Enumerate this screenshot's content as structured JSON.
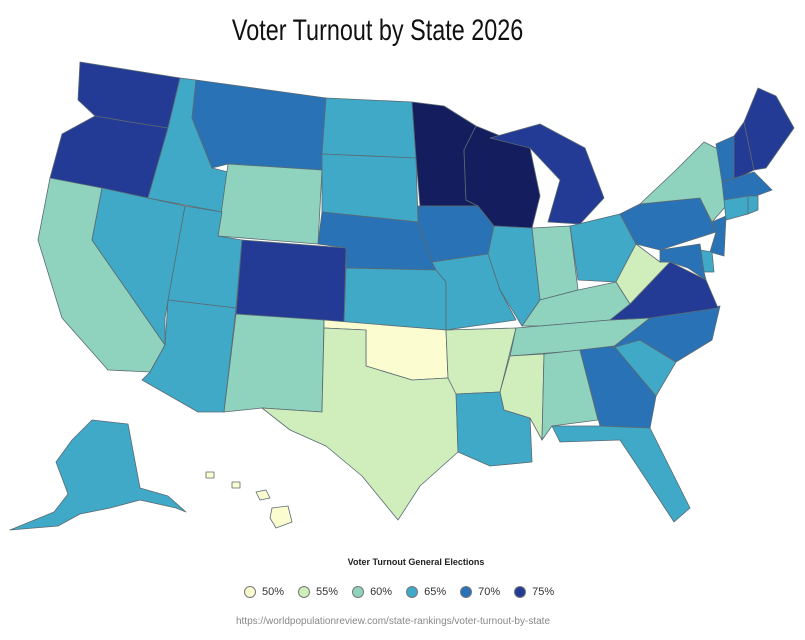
{
  "title": "Voter Turnout by State 2026",
  "legend": {
    "title": "Voter Turnout General Elections",
    "items": [
      {
        "label": "50%",
        "color": "#fbfcd0"
      },
      {
        "label": "55%",
        "color": "#cfeebc"
      },
      {
        "label": "60%",
        "color": "#8fd2bd"
      },
      {
        "label": "65%",
        "color": "#3fa9c7"
      },
      {
        "label": "70%",
        "color": "#2a72b6"
      },
      {
        "label": "75%",
        "color": "#233b94"
      }
    ]
  },
  "source": "https://worldpopulationreview.com/state-rankings/voter-turnout-by-state",
  "chart_data": {
    "type": "choropleth",
    "value_scale_colors": {
      "50": "#fbfcd0",
      "55": "#cfeebc",
      "60": "#8fd2bd",
      "65": "#3fa9c7",
      "70": "#2a72b6",
      "75": "#233b94",
      "78": "#141d5e"
    },
    "states": [
      {
        "code": "WA",
        "turnout": 73
      },
      {
        "code": "OR",
        "turnout": 73
      },
      {
        "code": "CA",
        "turnout": 61
      },
      {
        "code": "NV",
        "turnout": 66
      },
      {
        "code": "ID",
        "turnout": 64
      },
      {
        "code": "MT",
        "turnout": 70
      },
      {
        "code": "WY",
        "turnout": 62
      },
      {
        "code": "UT",
        "turnout": 66
      },
      {
        "code": "AZ",
        "turnout": 65
      },
      {
        "code": "CO",
        "turnout": 75
      },
      {
        "code": "NM",
        "turnout": 60
      },
      {
        "code": "ND",
        "turnout": 64
      },
      {
        "code": "SD",
        "turnout": 65
      },
      {
        "code": "NE",
        "turnout": 69
      },
      {
        "code": "KS",
        "turnout": 64
      },
      {
        "code": "OK",
        "turnout": 52
      },
      {
        "code": "TX",
        "turnout": 57
      },
      {
        "code": "MN",
        "turnout": 79
      },
      {
        "code": "IA",
        "turnout": 71
      },
      {
        "code": "MO",
        "turnout": 66
      },
      {
        "code": "AR",
        "turnout": 53
      },
      {
        "code": "LA",
        "turnout": 63
      },
      {
        "code": "WI",
        "turnout": 78
      },
      {
        "code": "IL",
        "turnout": 65
      },
      {
        "code": "MI",
        "turnout": 75
      },
      {
        "code": "IN",
        "turnout": 59
      },
      {
        "code": "OH",
        "turnout": 67
      },
      {
        "code": "KY",
        "turnout": 62
      },
      {
        "code": "TN",
        "turnout": 58
      },
      {
        "code": "MS",
        "turnout": 57
      },
      {
        "code": "AL",
        "turnout": 60
      },
      {
        "code": "GA",
        "turnout": 70
      },
      {
        "code": "FL",
        "turnout": 66
      },
      {
        "code": "SC",
        "turnout": 63
      },
      {
        "code": "NC",
        "turnout": 71
      },
      {
        "code": "VA",
        "turnout": 73
      },
      {
        "code": "WV",
        "turnout": 54
      },
      {
        "code": "PA",
        "turnout": 72
      },
      {
        "code": "NY",
        "turnout": 58
      },
      {
        "code": "NJ",
        "turnout": 68
      },
      {
        "code": "DE",
        "turnout": 67
      },
      {
        "code": "MD",
        "turnout": 70
      },
      {
        "code": "VT",
        "turnout": 72
      },
      {
        "code": "NH",
        "turnout": 76
      },
      {
        "code": "ME",
        "turnout": 75
      },
      {
        "code": "MA",
        "turnout": 69
      },
      {
        "code": "CT",
        "turnout": 66
      },
      {
        "code": "RI",
        "turnout": 64
      },
      {
        "code": "AK",
        "turnout": 65
      },
      {
        "code": "HI",
        "turnout": 52
      }
    ]
  }
}
